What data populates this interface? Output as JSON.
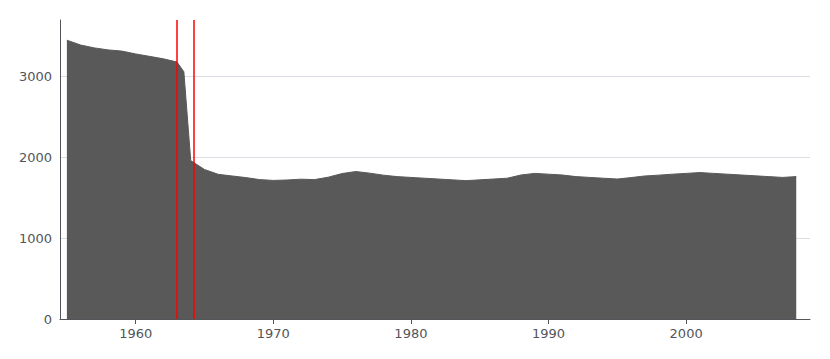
{
  "chart_data": {
    "type": "area",
    "x": [
      1955,
      1956,
      1957,
      1958,
      1959,
      1960,
      1961,
      1962,
      1963,
      1963.5,
      1964,
      1965,
      1966,
      1967,
      1968,
      1969,
      1970,
      1971,
      1972,
      1973,
      1974,
      1975,
      1976,
      1977,
      1978,
      1979,
      1980,
      1981,
      1982,
      1983,
      1984,
      1985,
      1986,
      1987,
      1988,
      1989,
      1990,
      1991,
      1992,
      1993,
      1994,
      1995,
      1996,
      1997,
      1998,
      1999,
      2000,
      2001,
      2002,
      2003,
      2004,
      2005,
      2006,
      2007,
      2008
    ],
    "values": [
      3450,
      3390,
      3355,
      3330,
      3315,
      3280,
      3250,
      3220,
      3180,
      3060,
      1960,
      1850,
      1790,
      1770,
      1750,
      1725,
      1715,
      1720,
      1730,
      1725,
      1755,
      1800,
      1825,
      1805,
      1780,
      1762,
      1752,
      1742,
      1732,
      1722,
      1712,
      1722,
      1732,
      1742,
      1782,
      1802,
      1792,
      1782,
      1762,
      1752,
      1742,
      1732,
      1750,
      1770,
      1780,
      1792,
      1802,
      1812,
      1802,
      1792,
      1782,
      1772,
      1762,
      1752,
      1762
    ],
    "color": "#595959",
    "vlines": {
      "x": [
        1963.0,
        1964.2
      ],
      "color": "#ff0000"
    },
    "xlim": [
      1954.5,
      2009
    ],
    "xticks": [
      1960,
      1970,
      1980,
      1990,
      2000
    ],
    "ylim": [
      0,
      3700
    ],
    "yticks": [
      0,
      1000,
      2000,
      3000
    ],
    "grid": true
  }
}
